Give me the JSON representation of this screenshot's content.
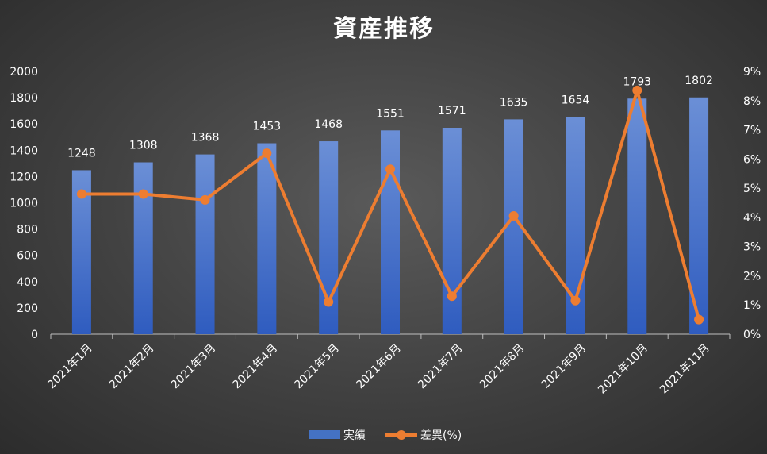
{
  "chart_data": {
    "type": "bar",
    "title": "資産推移",
    "categories": [
      "2021年1月",
      "2021年2月",
      "2021年3月",
      "2021年4月",
      "2021年5月",
      "2021年6月",
      "2021年7月",
      "2021年8月",
      "2021年9月",
      "2021年10月",
      "2021年11月"
    ],
    "series": [
      {
        "name": "実績",
        "type": "bar",
        "axis": "left",
        "color": "#4472C4",
        "values": [
          1248,
          1308,
          1368,
          1453,
          1468,
          1551,
          1571,
          1635,
          1654,
          1793,
          1802
        ]
      },
      {
        "name": "差異(%)",
        "type": "line",
        "axis": "right",
        "color": "#ED7D31",
        "values": [
          4.8,
          4.8,
          4.6,
          6.2,
          1.1,
          5.65,
          1.3,
          4.05,
          1.15,
          8.35,
          0.5
        ]
      }
    ],
    "y_left": {
      "ylim": [
        0,
        2000
      ],
      "ticks": [
        "0",
        "200",
        "400",
        "600",
        "800",
        "1000",
        "1200",
        "1400",
        "1600",
        "1800",
        "2000"
      ]
    },
    "y_right": {
      "ylim": [
        0,
        9
      ],
      "ticks": [
        "0%",
        "1%",
        "2%",
        "3%",
        "4%",
        "5%",
        "6%",
        "7%",
        "8%",
        "9%"
      ]
    },
    "grid": false,
    "legend": "bottom-center"
  }
}
